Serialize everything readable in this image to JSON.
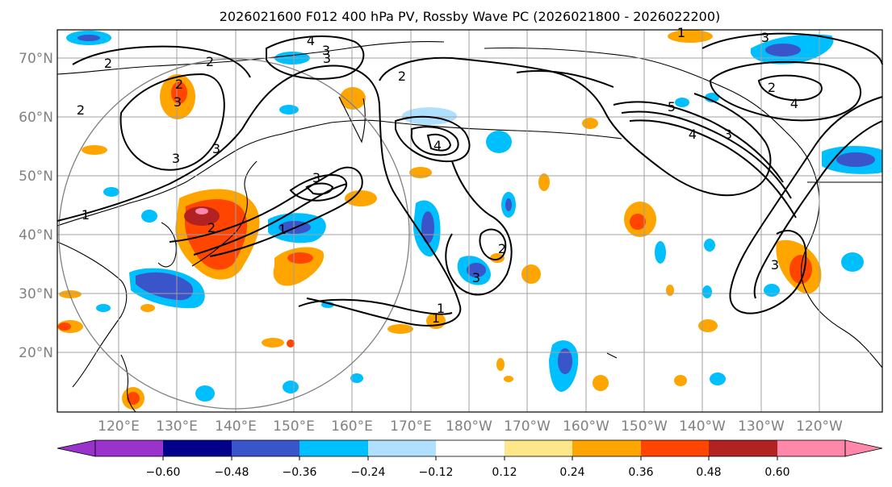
{
  "title": "2026021600 F012 400 hPa PV, Rossby Wave PC (2026021800 - 2026022200)",
  "lat_labels": [
    "70°N",
    "60°N",
    "50°N",
    "40°N",
    "30°N",
    "20°N"
  ],
  "lon_labels": [
    "120°E",
    "130°E",
    "140°E",
    "150°E",
    "160°E",
    "170°E",
    "180°W",
    "170°W",
    "160°W",
    "150°W",
    "140°W",
    "130°W",
    "120°W"
  ],
  "colorbar": {
    "ticks": [
      "−0.60",
      "−0.48",
      "−0.36",
      "−0.24",
      "−0.12",
      "0.12",
      "0.24",
      "0.36",
      "0.48",
      "0.60"
    ],
    "colors": [
      "#9a33cc",
      "#00008b",
      "#3a54c9",
      "#00bfff",
      "#b0e0ff",
      "#ffffff",
      "#fee68a",
      "#ffa500",
      "#ff4500",
      "#b22222",
      "#ff88aa"
    ]
  },
  "contour_labels": [
    "2",
    "2",
    "3",
    "3",
    "4",
    "3",
    "1",
    "2",
    "3",
    "4",
    "4",
    "5",
    "3",
    "3",
    "2",
    "1",
    "1",
    "2",
    "3",
    "4",
    "3",
    "2",
    "2",
    "1",
    "3",
    "3",
    "2",
    "1"
  ],
  "colors": {
    "contour": "#000000",
    "grid": "#a0a0a0",
    "axis_label": "#808080"
  }
}
